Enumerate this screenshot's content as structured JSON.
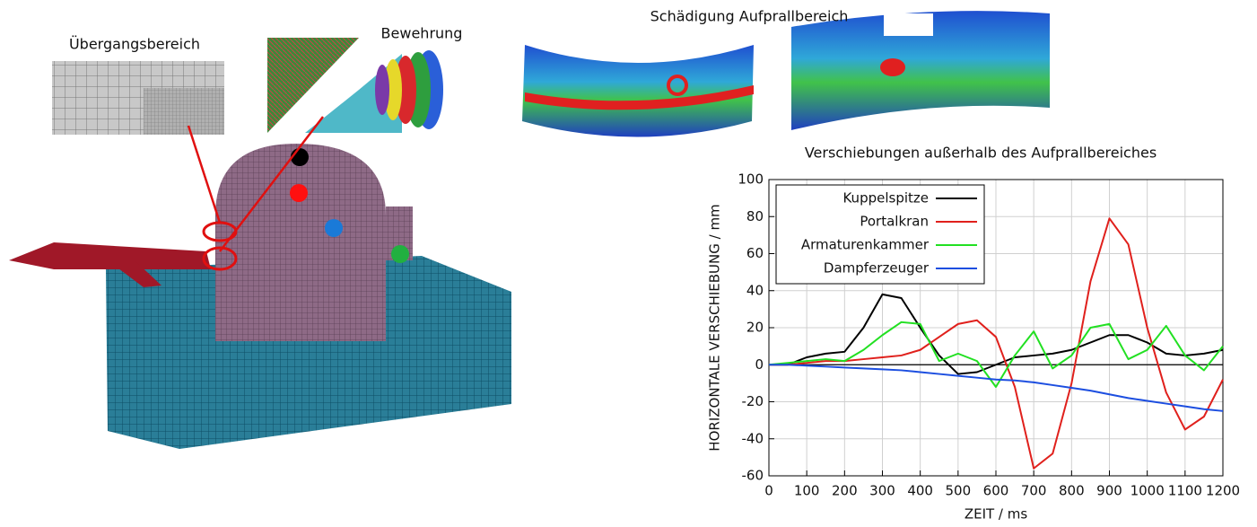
{
  "figure_labels": [
    "Übergangsbereich",
    "Bewehrung",
    "Schädigung Aufprallbereich"
  ],
  "chart_data": {
    "type": "line",
    "title": "Verschiebungen außerhalb des Aufprallbereiches",
    "x_label": "ZEIT / ms",
    "y_label": "HORIZONTALE VERSCHIEBUNG / mm",
    "x": [
      0,
      50,
      100,
      150,
      200,
      250,
      300,
      350,
      400,
      450,
      500,
      550,
      600,
      650,
      700,
      750,
      800,
      850,
      900,
      950,
      1000,
      1050,
      1100,
      1150,
      1200
    ],
    "series": [
      {
        "name": "Kuppelspitze",
        "color": "#000000",
        "values": [
          0,
          0,
          4,
          6,
          7,
          20,
          38,
          36,
          20,
          5,
          -5,
          -4,
          0,
          4,
          5,
          6,
          8,
          12,
          16,
          16,
          12,
          6,
          5,
          6,
          8
        ]
      },
      {
        "name": "Portalkran",
        "color": "#e0201c",
        "values": [
          0,
          0,
          1,
          2,
          2,
          3,
          4,
          5,
          8,
          15,
          22,
          24,
          15,
          -12,
          -56,
          -48,
          -10,
          45,
          79,
          65,
          20,
          -15,
          -35,
          -28,
          -8
        ]
      },
      {
        "name": "Armaturenkammer",
        "color": "#22e022",
        "values": [
          0,
          1,
          2,
          3,
          2,
          8,
          16,
          23,
          22,
          2,
          6,
          2,
          -12,
          5,
          18,
          -2,
          5,
          20,
          22,
          3,
          8,
          21,
          5,
          -3,
          10
        ]
      },
      {
        "name": "Dampferzeuger",
        "color": "#1c4ee0",
        "values": [
          0,
          0,
          -0.5,
          -1,
          -1.5,
          -2,
          -2.5,
          -3,
          -4,
          -5,
          -6,
          -7,
          -8,
          -8.5,
          -9.5,
          -11,
          -12.5,
          -14,
          -16,
          -18,
          -19.5,
          -21,
          -22.5,
          -24,
          -25
        ]
      }
    ],
    "xlim": [
      0,
      1200
    ],
    "xticks": [
      0,
      100,
      200,
      300,
      400,
      500,
      600,
      700,
      800,
      900,
      1000,
      1100,
      1200
    ],
    "ylim": [
      -60,
      100
    ],
    "yticks": [
      -60,
      -40,
      -20,
      0,
      20,
      40,
      60,
      80,
      100
    ],
    "grid": true,
    "legend": "upper-left"
  }
}
